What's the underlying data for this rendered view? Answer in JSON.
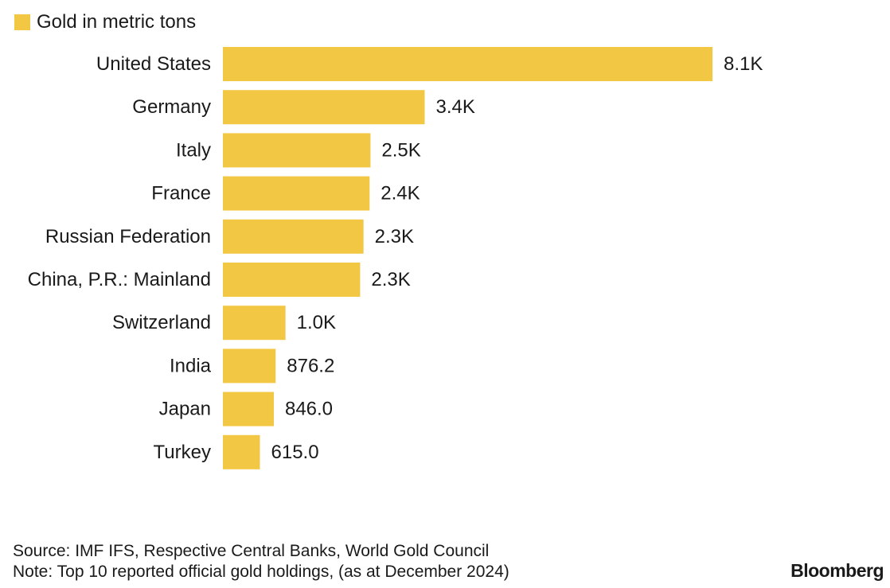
{
  "colors": {
    "bar": "#F2C744",
    "text": "#1a1a1a",
    "background": "#ffffff"
  },
  "legend": {
    "label": "Gold in metric tons"
  },
  "chart_data": {
    "type": "bar",
    "orientation": "horizontal",
    "title": "",
    "xlabel": "",
    "ylabel": "",
    "legend": [
      "Gold in metric tons"
    ],
    "legend_position": "top-left",
    "grid": false,
    "xlim": [
      0,
      8133
    ],
    "categories": [
      "United States",
      "Germany",
      "Italy",
      "France",
      "Russian Federation",
      "China, P.R.: Mainland",
      "Switzerland",
      "India",
      "Japan",
      "Turkey"
    ],
    "values": [
      8133,
      3352,
      2452,
      2437,
      2336,
      2280,
      1040,
      876.2,
      846.0,
      615.0
    ],
    "value_labels": [
      "8.1K",
      "3.4K",
      "2.5K",
      "2.4K",
      "2.3K",
      "2.3K",
      "1.0K",
      "876.2",
      "846.0",
      "615.0"
    ]
  },
  "footer": {
    "source": "Source: IMF IFS, Respective Central Banks, World Gold Council",
    "note": "Note: Top 10 reported official gold holdings, (as at December 2024)",
    "brand": "Bloomberg"
  }
}
